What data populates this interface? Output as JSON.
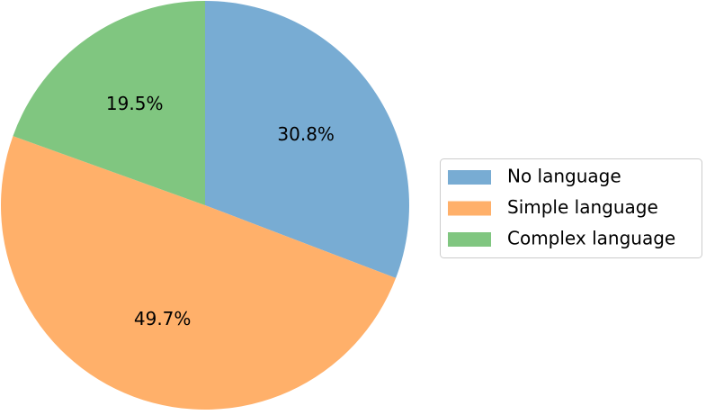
{
  "chart_data": {
    "type": "pie",
    "categories": [
      "No language",
      "Simple language",
      "Complex language"
    ],
    "values": [
      30.8,
      49.7,
      19.5
    ],
    "value_labels": [
      "30.8%",
      "49.7%",
      "19.5%"
    ],
    "colors": [
      "#78acd3",
      "#ffb06a",
      "#80c680"
    ],
    "start_angle": 90,
    "direction": "clockwise",
    "legend": "right"
  }
}
